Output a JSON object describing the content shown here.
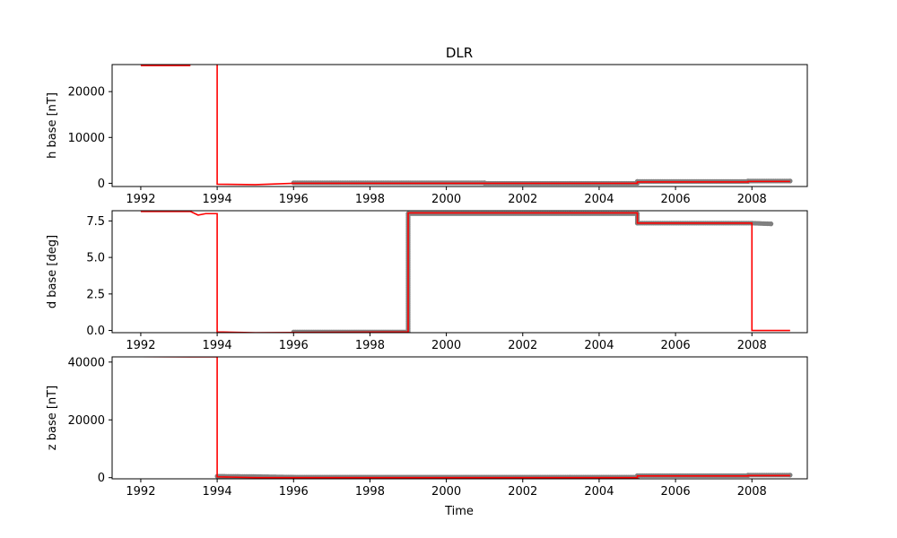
{
  "chart_data": {
    "type": "line",
    "title": "DLR",
    "xlabel": "Time",
    "xlim": [
      1991.25,
      2009.45
    ],
    "xticks": [
      1992,
      1994,
      1996,
      1998,
      2000,
      2002,
      2004,
      2006,
      2008
    ],
    "colors": {
      "line": "#ff0000",
      "points": "#808080"
    },
    "panels": [
      {
        "ylabel": "h base [nT]",
        "ylim": [
          -700,
          25900
        ],
        "yticks": [
          0,
          10000,
          20000
        ],
        "line": [
          [
            1992.0,
            25700
          ],
          [
            1993.3,
            25700
          ],
          [
            1993.3,
            null
          ],
          [
            1994.0,
            25900
          ],
          [
            1994.0,
            -200
          ],
          [
            1995.0,
            -300
          ],
          [
            1996.0,
            0
          ],
          [
            2005.0,
            0
          ],
          [
            2005.0,
            300
          ],
          [
            2007.9,
            300
          ],
          [
            2007.9,
            400
          ],
          [
            2009.0,
            400
          ]
        ],
        "points": [
          [
            1996.0,
            100
          ],
          [
            2001.0,
            100
          ],
          [
            2001.0,
            0
          ],
          [
            2005.0,
            0
          ],
          [
            2005.0,
            400
          ],
          [
            2007.9,
            400
          ],
          [
            2007.9,
            500
          ],
          [
            2009.0,
            500
          ]
        ]
      },
      {
        "ylabel": "d base [deg]",
        "ylim": [
          -0.15,
          8.2
        ],
        "yticks": [
          0.0,
          2.5,
          5.0,
          7.5
        ],
        "line": [
          [
            1992.0,
            8.15
          ],
          [
            1993.3,
            8.15
          ],
          [
            1993.5,
            7.9
          ],
          [
            1993.7,
            8.0
          ],
          [
            1994.0,
            8.0
          ],
          [
            1994.0,
            -0.1
          ],
          [
            1995.0,
            -0.15
          ],
          [
            1999.0,
            -0.1
          ],
          [
            1999.0,
            8.05
          ],
          [
            2005.0,
            8.05
          ],
          [
            2005.0,
            7.35
          ],
          [
            2008.0,
            7.35
          ],
          [
            2008.0,
            0.0
          ],
          [
            2009.0,
            0.0
          ]
        ],
        "points": [
          [
            1996.0,
            -0.1
          ],
          [
            1999.0,
            -0.1
          ],
          [
            1999.0,
            8.0
          ],
          [
            2005.0,
            8.0
          ],
          [
            2005.0,
            7.35
          ],
          [
            2008.0,
            7.35
          ],
          [
            2008.5,
            7.3
          ]
        ]
      },
      {
        "ylabel": "z base [nT]",
        "ylim": [
          -400,
          41800
        ],
        "yticks": [
          0,
          20000,
          40000
        ],
        "line": [
          [
            1992.0,
            41900
          ],
          [
            1993.3,
            41800
          ],
          [
            1994.0,
            41800
          ],
          [
            1994.0,
            300
          ],
          [
            1995.0,
            0
          ],
          [
            2005.0,
            0
          ],
          [
            2005.0,
            600
          ],
          [
            2007.9,
            600
          ],
          [
            2007.9,
            700
          ],
          [
            2009.0,
            700
          ]
        ],
        "points": [
          [
            1994.0,
            500
          ],
          [
            1995.0,
            400
          ],
          [
            1996.0,
            200
          ],
          [
            2005.0,
            200
          ],
          [
            2005.0,
            700
          ],
          [
            2007.9,
            700
          ],
          [
            2007.9,
            900
          ],
          [
            2009.0,
            900
          ]
        ]
      }
    ]
  }
}
